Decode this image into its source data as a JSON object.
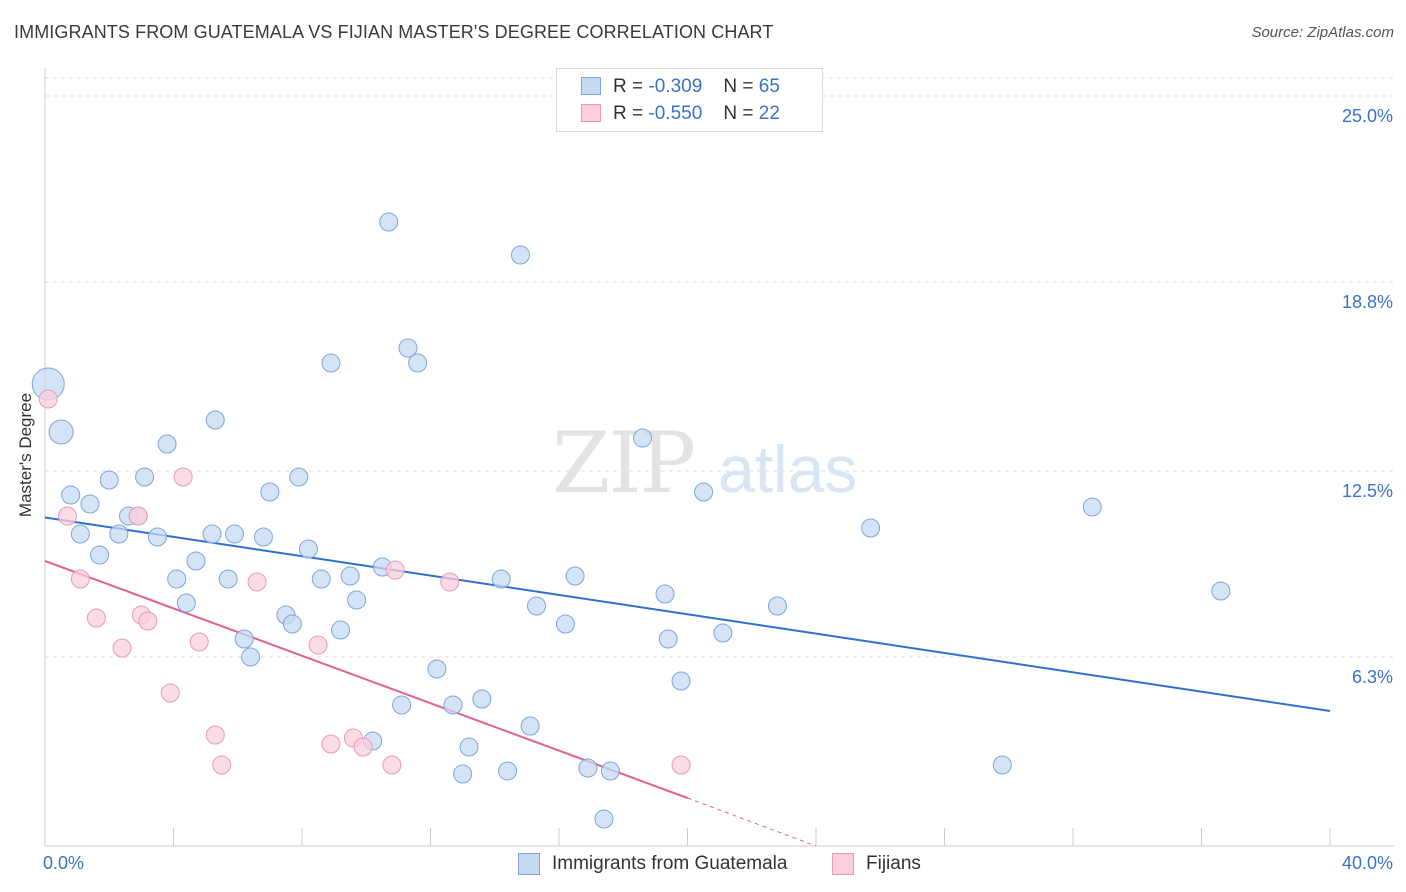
{
  "header": {
    "title": "IMMIGRANTS FROM GUATEMALA VS FIJIAN MASTER'S DEGREE CORRELATION CHART",
    "source": "Source: ZipAtlas.com"
  },
  "watermark": {
    "zip": "ZIP",
    "atlas": "atlas"
  },
  "stats_legend": [
    {
      "r_label": "R =",
      "r_value": "-0.309",
      "n_label": "N =",
      "n_value": "65"
    },
    {
      "r_label": "R =",
      "r_value": "-0.550",
      "n_label": "N =",
      "n_value": "22"
    }
  ],
  "bottom_legend": [
    {
      "label": "Immigrants from Guatemala"
    },
    {
      "label": "Fijians"
    }
  ],
  "chart_data": {
    "type": "scatter",
    "title": "IMMIGRANTS FROM GUATEMALA VS FIJIAN MASTER'S DEGREE CORRELATION CHART",
    "xlabel": "",
    "ylabel": "Master's Degree",
    "xlim": [
      0,
      40
    ],
    "ylim": [
      0,
      25.6
    ],
    "x_tick_labels": [
      "0.0%",
      "40.0%"
    ],
    "y_ticks": [
      6.3,
      12.5,
      18.8,
      25.0
    ],
    "y_tick_labels": [
      "6.3%",
      "12.5%",
      "18.8%",
      "25.0%"
    ],
    "grid": true,
    "colors": {
      "guatemala_fill": "#c5d9f2",
      "guatemala_stroke": "#7ea6dc",
      "guatemala_line": "#2f6fcf",
      "fijian_fill": "#f9cfdc",
      "fijian_stroke": "#eb9ab4",
      "fijian_line": "#e0628e",
      "axis_label": "#3a72c8"
    },
    "series": [
      {
        "name": "Immigrants from Guatemala",
        "R": -0.309,
        "N": 65,
        "trend": {
          "x0": 0,
          "y0": 10.95,
          "x1": 40,
          "y1": 4.5
        },
        "points": [
          {
            "x": 0.1,
            "y": 15.4,
            "big": 2
          },
          {
            "x": 0.5,
            "y": 13.8,
            "big": 1
          },
          {
            "x": 0.8,
            "y": 11.7
          },
          {
            "x": 1.1,
            "y": 10.4
          },
          {
            "x": 1.4,
            "y": 11.4
          },
          {
            "x": 1.7,
            "y": 9.7
          },
          {
            "x": 2.0,
            "y": 12.2
          },
          {
            "x": 2.3,
            "y": 10.4
          },
          {
            "x": 2.6,
            "y": 11.0
          },
          {
            "x": 2.9,
            "y": 11.0
          },
          {
            "x": 3.1,
            "y": 12.3
          },
          {
            "x": 3.5,
            "y": 10.3
          },
          {
            "x": 3.8,
            "y": 13.4
          },
          {
            "x": 4.1,
            "y": 8.9
          },
          {
            "x": 4.4,
            "y": 8.1
          },
          {
            "x": 4.7,
            "y": 9.5
          },
          {
            "x": 5.2,
            "y": 10.4
          },
          {
            "x": 5.3,
            "y": 14.2
          },
          {
            "x": 5.7,
            "y": 8.9
          },
          {
            "x": 5.9,
            "y": 10.4
          },
          {
            "x": 6.2,
            "y": 6.9
          },
          {
            "x": 6.4,
            "y": 6.3
          },
          {
            "x": 6.8,
            "y": 10.3
          },
          {
            "x": 7.0,
            "y": 11.8
          },
          {
            "x": 7.5,
            "y": 7.7
          },
          {
            "x": 7.7,
            "y": 7.4
          },
          {
            "x": 7.9,
            "y": 12.3
          },
          {
            "x": 8.2,
            "y": 9.9
          },
          {
            "x": 8.6,
            "y": 8.9
          },
          {
            "x": 8.9,
            "y": 16.1
          },
          {
            "x": 9.2,
            "y": 7.2
          },
          {
            "x": 9.5,
            "y": 9.0
          },
          {
            "x": 9.7,
            "y": 8.2
          },
          {
            "x": 10.2,
            "y": 3.5
          },
          {
            "x": 10.5,
            "y": 9.3
          },
          {
            "x": 10.7,
            "y": 20.8
          },
          {
            "x": 11.1,
            "y": 4.7
          },
          {
            "x": 11.3,
            "y": 16.6
          },
          {
            "x": 11.6,
            "y": 16.1
          },
          {
            "x": 12.2,
            "y": 5.9
          },
          {
            "x": 12.7,
            "y": 4.7
          },
          {
            "x": 13.0,
            "y": 2.4
          },
          {
            "x": 13.2,
            "y": 3.3
          },
          {
            "x": 13.6,
            "y": 4.9
          },
          {
            "x": 14.2,
            "y": 8.9
          },
          {
            "x": 14.4,
            "y": 2.5
          },
          {
            "x": 14.8,
            "y": 19.7
          },
          {
            "x": 15.1,
            "y": 4.0
          },
          {
            "x": 15.3,
            "y": 8.0
          },
          {
            "x": 16.2,
            "y": 7.4
          },
          {
            "x": 16.5,
            "y": 9.0
          },
          {
            "x": 16.9,
            "y": 2.6
          },
          {
            "x": 17.4,
            "y": 0.9
          },
          {
            "x": 17.6,
            "y": 2.5
          },
          {
            "x": 18.6,
            "y": 13.6
          },
          {
            "x": 19.3,
            "y": 8.4
          },
          {
            "x": 19.4,
            "y": 6.9
          },
          {
            "x": 19.8,
            "y": 5.5
          },
          {
            "x": 20.5,
            "y": 11.8
          },
          {
            "x": 21.1,
            "y": 7.1
          },
          {
            "x": 22.8,
            "y": 8.0
          },
          {
            "x": 25.7,
            "y": 10.6
          },
          {
            "x": 29.8,
            "y": 2.7
          },
          {
            "x": 32.6,
            "y": 11.3
          },
          {
            "x": 36.6,
            "y": 8.5
          }
        ]
      },
      {
        "name": "Fijians",
        "R": -0.55,
        "N": 22,
        "trend": {
          "x0": 0,
          "y0": 9.5,
          "x1": 20.0,
          "y1": 1.6,
          "dash_to_x": 24.0,
          "dash_to_y": 0.0
        },
        "points": [
          {
            "x": 0.1,
            "y": 14.9
          },
          {
            "x": 0.7,
            "y": 11.0
          },
          {
            "x": 1.1,
            "y": 8.9
          },
          {
            "x": 1.6,
            "y": 7.6
          },
          {
            "x": 2.4,
            "y": 6.6
          },
          {
            "x": 2.9,
            "y": 11.0
          },
          {
            "x": 3.0,
            "y": 7.7
          },
          {
            "x": 3.2,
            "y": 7.5
          },
          {
            "x": 3.9,
            "y": 5.1
          },
          {
            "x": 4.3,
            "y": 12.3
          },
          {
            "x": 4.8,
            "y": 6.8
          },
          {
            "x": 5.3,
            "y": 3.7
          },
          {
            "x": 5.5,
            "y": 2.7
          },
          {
            "x": 6.6,
            "y": 8.8
          },
          {
            "x": 8.5,
            "y": 6.7
          },
          {
            "x": 8.9,
            "y": 3.4
          },
          {
            "x": 9.6,
            "y": 3.6
          },
          {
            "x": 9.9,
            "y": 3.3
          },
          {
            "x": 10.8,
            "y": 2.7
          },
          {
            "x": 10.9,
            "y": 9.2
          },
          {
            "x": 12.6,
            "y": 8.8
          },
          {
            "x": 19.8,
            "y": 2.7
          }
        ]
      }
    ]
  }
}
